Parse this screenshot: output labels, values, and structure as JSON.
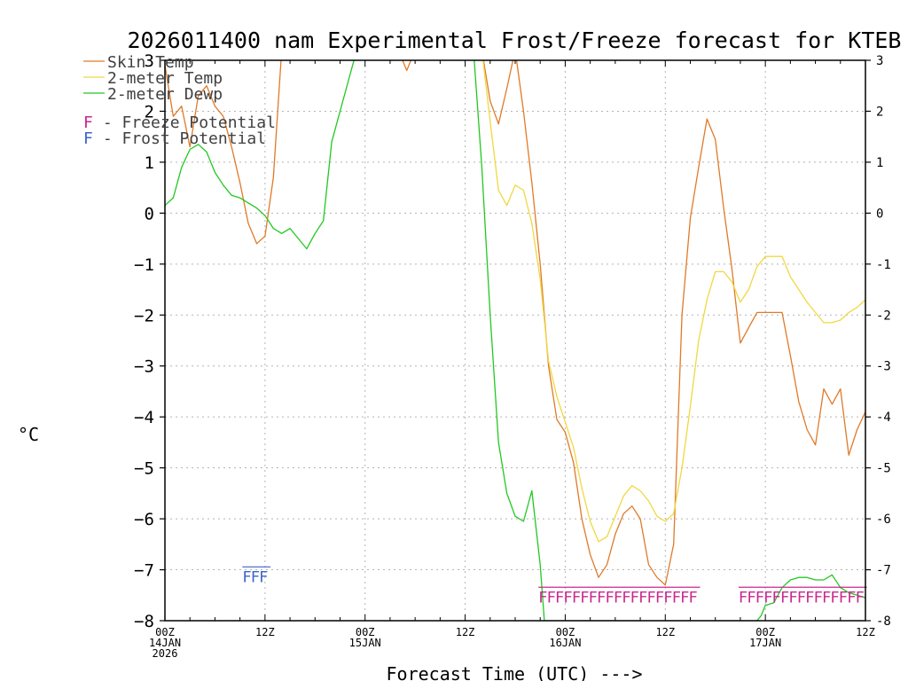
{
  "chart_data": {
    "type": "line",
    "title": "2026011400 nam Experimental Frost/Freeze forecast for KTEB",
    "xlabel": "Forecast Time (UTC) --->",
    "ylabel": "°C",
    "ylim": [
      -8,
      3
    ],
    "xlim": [
      0,
      84
    ],
    "y_ticks": [
      -8,
      -7,
      -6,
      -5,
      -4,
      -3,
      -2,
      -1,
      0,
      1,
      2,
      3
    ],
    "y_tick_labels": [
      "−8",
      "−7",
      "−6",
      "−5",
      "−4",
      "−3",
      "−2",
      "−1",
      "0",
      "1",
      "2",
      "3"
    ],
    "y_tick_labels_right": [
      "-8",
      "-7",
      "-6",
      "-5",
      "-4",
      "-3",
      "-2",
      "-1",
      "0",
      "1",
      "2",
      "3"
    ],
    "x_ticks": [
      {
        "hour": 0,
        "label": "00Z",
        "sub1": "14JAN",
        "sub2": "2026"
      },
      {
        "hour": 12,
        "label": "12Z",
        "sub1": "",
        "sub2": ""
      },
      {
        "hour": 24,
        "label": "00Z",
        "sub1": "15JAN",
        "sub2": ""
      },
      {
        "hour": 36,
        "label": "12Z",
        "sub1": "",
        "sub2": ""
      },
      {
        "hour": 48,
        "label": "00Z",
        "sub1": "16JAN",
        "sub2": ""
      },
      {
        "hour": 60,
        "label": "12Z",
        "sub1": "",
        "sub2": ""
      },
      {
        "hour": 72,
        "label": "00Z",
        "sub1": "17JAN",
        "sub2": ""
      },
      {
        "hour": 84,
        "label": "12Z",
        "sub1": "",
        "sub2": ""
      }
    ],
    "grid": true,
    "legend": {
      "placement": "top-left",
      "entries": [
        {
          "label": "Skin Temp",
          "color": "#e07a28"
        },
        {
          "label": "2-meter Temp",
          "color": "#f0d840"
        },
        {
          "label": "2-meter Dewp",
          "color": "#22c822"
        }
      ],
      "potential_entries": [
        {
          "letter": "F",
          "label": " - Freeze Potential",
          "color": "#c8288c"
        },
        {
          "letter": "F",
          "label": " - Frost Potential",
          "color": "#3c64c8"
        }
      ]
    },
    "series": [
      {
        "name": "Skin Temp",
        "color": "#e07a28",
        "points": [
          [
            0,
            2.9
          ],
          [
            1,
            1.9
          ],
          [
            2,
            2.1
          ],
          [
            3,
            1.3
          ],
          [
            4,
            2.3
          ],
          [
            5,
            2.5
          ],
          [
            6,
            2.1
          ],
          [
            7,
            1.9
          ],
          [
            8,
            1.3
          ],
          [
            9,
            0.6
          ],
          [
            10,
            -0.2
          ],
          [
            11,
            -0.6
          ],
          [
            12,
            -0.45
          ],
          [
            13,
            0.7
          ],
          [
            14,
            3.2
          ],
          [
            28,
            3.2
          ],
          [
            29,
            2.8
          ],
          [
            30,
            3.2
          ],
          [
            38,
            3.2
          ],
          [
            39,
            2.2
          ],
          [
            40,
            1.75
          ],
          [
            41,
            2.45
          ],
          [
            42,
            3.2
          ],
          [
            43,
            2.0
          ],
          [
            44,
            0.6
          ],
          [
            45,
            -1.0
          ],
          [
            46,
            -3.0
          ],
          [
            47,
            -4.05
          ],
          [
            48,
            -4.3
          ],
          [
            49,
            -4.9
          ],
          [
            50,
            -6.0
          ],
          [
            51,
            -6.7
          ],
          [
            52,
            -7.15
          ],
          [
            53,
            -6.9
          ],
          [
            54,
            -6.3
          ],
          [
            55,
            -5.9
          ],
          [
            56,
            -5.75
          ],
          [
            57,
            -6.0
          ],
          [
            58,
            -6.9
          ],
          [
            59,
            -7.15
          ],
          [
            60,
            -7.3
          ],
          [
            61,
            -6.5
          ],
          [
            62,
            -2.0
          ],
          [
            63,
            -0.1
          ],
          [
            64,
            0.9
          ],
          [
            65,
            1.85
          ],
          [
            66,
            1.45
          ],
          [
            67,
            0.1
          ],
          [
            68,
            -1.1
          ],
          [
            69,
            -2.55
          ],
          [
            70,
            -2.25
          ],
          [
            71,
            -1.95
          ],
          [
            72,
            -1.95
          ],
          [
            73,
            -1.95
          ],
          [
            74,
            -1.95
          ],
          [
            75,
            -2.8
          ],
          [
            76,
            -3.7
          ],
          [
            77,
            -4.25
          ],
          [
            78,
            -4.55
          ],
          [
            79,
            -3.45
          ],
          [
            80,
            -3.75
          ],
          [
            81,
            -3.45
          ],
          [
            82,
            -4.75
          ],
          [
            83,
            -4.25
          ],
          [
            84,
            -3.9
          ]
        ]
      },
      {
        "name": "2-meter Temp",
        "color": "#f0d840",
        "points": [
          [
            38,
            3.2
          ],
          [
            39,
            1.8
          ],
          [
            40,
            0.45
          ],
          [
            41,
            0.15
          ],
          [
            42,
            0.55
          ],
          [
            43,
            0.45
          ],
          [
            44,
            -0.2
          ],
          [
            45,
            -1.3
          ],
          [
            46,
            -2.9
          ],
          [
            47,
            -3.6
          ],
          [
            48,
            -4.1
          ],
          [
            49,
            -4.6
          ],
          [
            50,
            -5.4
          ],
          [
            51,
            -6.05
          ],
          [
            52,
            -6.45
          ],
          [
            53,
            -6.35
          ],
          [
            54,
            -5.95
          ],
          [
            55,
            -5.55
          ],
          [
            56,
            -5.35
          ],
          [
            57,
            -5.45
          ],
          [
            58,
            -5.65
          ],
          [
            59,
            -5.95
          ],
          [
            60,
            -6.05
          ],
          [
            61,
            -5.9
          ],
          [
            62,
            -5.0
          ],
          [
            63,
            -3.8
          ],
          [
            64,
            -2.5
          ],
          [
            65,
            -1.7
          ],
          [
            66,
            -1.15
          ],
          [
            67,
            -1.15
          ],
          [
            68,
            -1.35
          ],
          [
            69,
            -1.75
          ],
          [
            70,
            -1.5
          ],
          [
            71,
            -1.05
          ],
          [
            72,
            -0.85
          ],
          [
            73,
            -0.85
          ],
          [
            74,
            -0.85
          ],
          [
            75,
            -1.25
          ],
          [
            76,
            -1.5
          ],
          [
            77,
            -1.75
          ],
          [
            78,
            -1.95
          ],
          [
            79,
            -2.15
          ],
          [
            80,
            -2.15
          ],
          [
            81,
            -2.1
          ],
          [
            82,
            -1.95
          ],
          [
            83,
            -1.85
          ],
          [
            84,
            -1.7
          ]
        ]
      },
      {
        "name": "2-meter Dewp",
        "color": "#22c822",
        "points": [
          [
            0,
            0.15
          ],
          [
            1,
            0.3
          ],
          [
            2,
            0.9
          ],
          [
            3,
            1.25
          ],
          [
            4,
            1.35
          ],
          [
            5,
            1.2
          ],
          [
            6,
            0.8
          ],
          [
            7,
            0.55
          ],
          [
            8,
            0.35
          ],
          [
            9,
            0.3
          ],
          [
            10,
            0.2
          ],
          [
            11,
            0.1
          ],
          [
            12,
            -0.05
          ],
          [
            13,
            -0.3
          ],
          [
            14,
            -0.4
          ],
          [
            15,
            -0.3
          ],
          [
            16,
            -0.5
          ],
          [
            17,
            -0.7
          ],
          [
            18,
            -0.4
          ],
          [
            19,
            -0.15
          ],
          [
            20,
            1.4
          ],
          [
            21,
            2.0
          ],
          [
            22,
            2.6
          ],
          [
            23,
            3.2
          ],
          [
            37,
            3.2
          ],
          [
            38,
            0.9
          ],
          [
            39,
            -2.0
          ],
          [
            40,
            -4.5
          ],
          [
            41,
            -5.5
          ],
          [
            42,
            -5.95
          ],
          [
            43,
            -6.05
          ],
          [
            44,
            -5.45
          ],
          [
            45,
            -6.9
          ],
          [
            45.5,
            -8.0
          ],
          [
            71,
            -8.0
          ],
          [
            71.5,
            -7.9
          ],
          [
            72,
            -7.7
          ],
          [
            73,
            -7.65
          ],
          [
            74,
            -7.35
          ],
          [
            75,
            -7.2
          ],
          [
            76,
            -7.15
          ],
          [
            77,
            -7.15
          ],
          [
            78,
            -7.2
          ],
          [
            79,
            -7.2
          ],
          [
            80,
            -7.1
          ],
          [
            81,
            -7.35
          ],
          [
            82,
            -7.45
          ],
          [
            83,
            -7.5
          ],
          [
            84,
            -7.55
          ]
        ]
      }
    ],
    "frost_potential": {
      "color": "#3c64c8",
      "letter": "F",
      "value": -7.1,
      "hours": [
        9.5,
        10.5,
        11.5
      ]
    },
    "freeze_potential": {
      "color": "#c8288c",
      "letter": "F",
      "value": -7.5,
      "hours": [
        45,
        46,
        47,
        48,
        49,
        50,
        51,
        52,
        53,
        54,
        55,
        56,
        57,
        58,
        59,
        60,
        61,
        62,
        63,
        69,
        70,
        71,
        72,
        73,
        74,
        75,
        76,
        77,
        78,
        79,
        80,
        81,
        82,
        83
      ]
    }
  }
}
